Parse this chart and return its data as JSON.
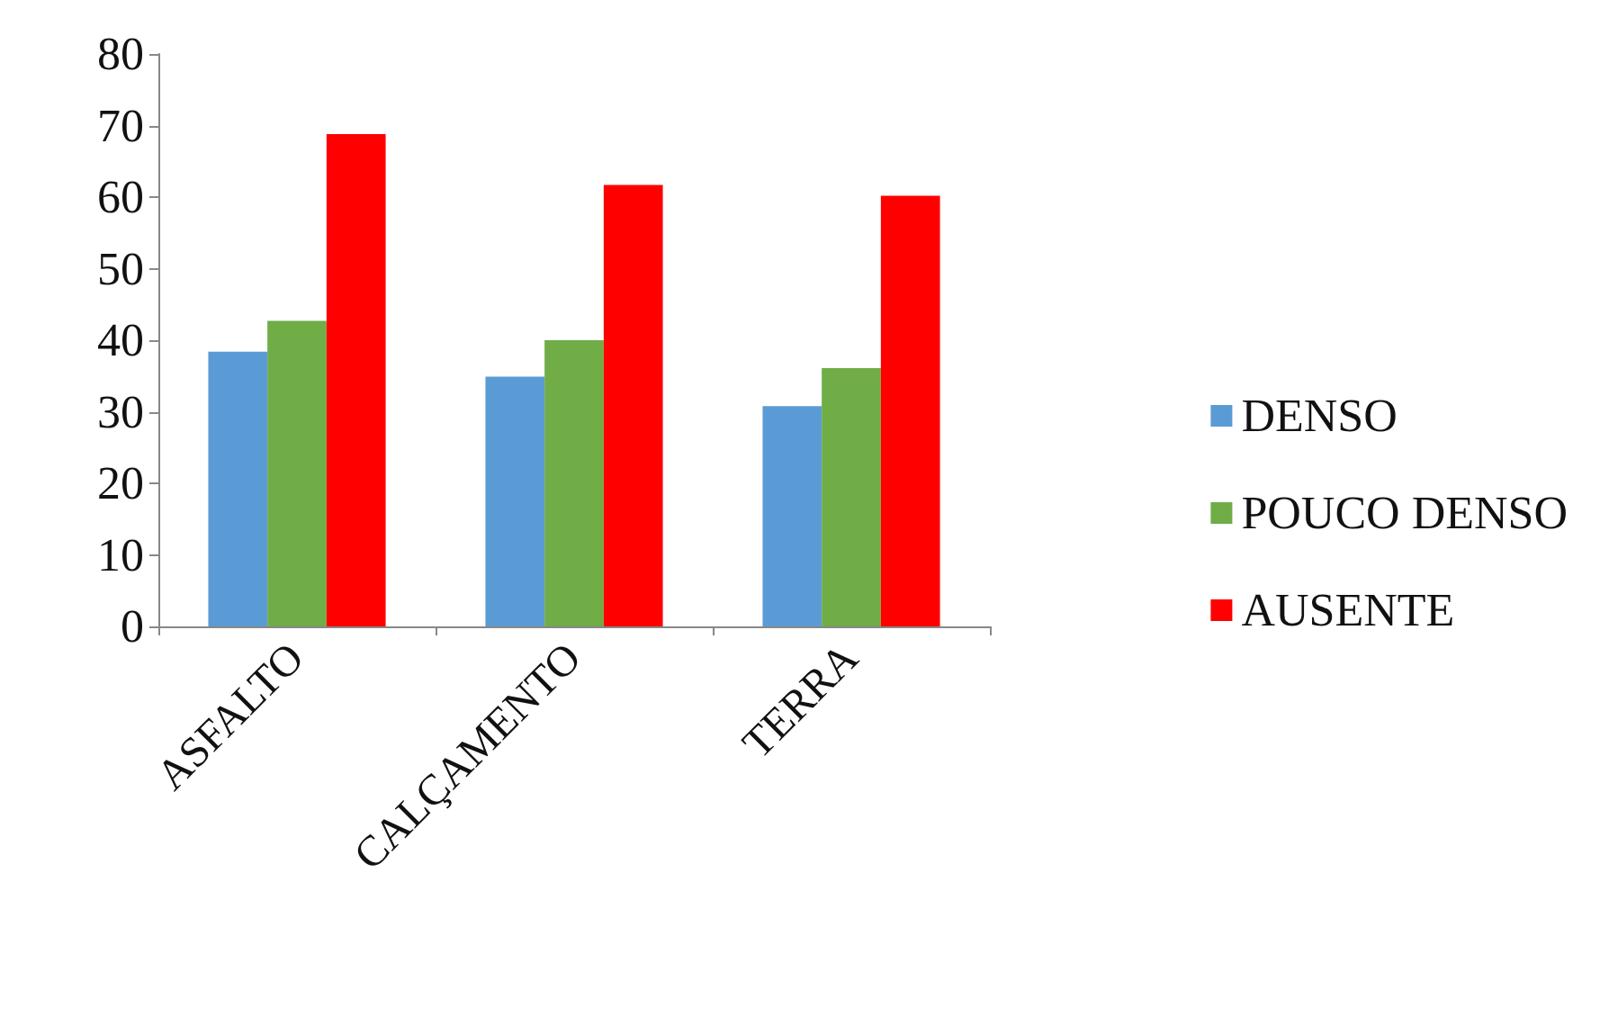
{
  "chart_data": {
    "type": "bar",
    "categories": [
      "ASFALTO",
      "CALÇAMENTO",
      "TERRA"
    ],
    "series": [
      {
        "name": "DENSO",
        "color": "#5b9bd5",
        "values": [
          38.4,
          34.9,
          30.8
        ]
      },
      {
        "name": "POUCO DENSO",
        "color": "#70ad47",
        "values": [
          42.7,
          40,
          36.1
        ]
      },
      {
        "name": "AUSENTE",
        "color": "#ff0000",
        "values": [
          68.8,
          61.7,
          60.2
        ]
      }
    ],
    "ylim": [
      0,
      80
    ],
    "yticks": [
      0,
      10,
      20,
      30,
      40,
      50,
      60,
      70,
      80
    ],
    "grid": false,
    "legend": "right"
  }
}
